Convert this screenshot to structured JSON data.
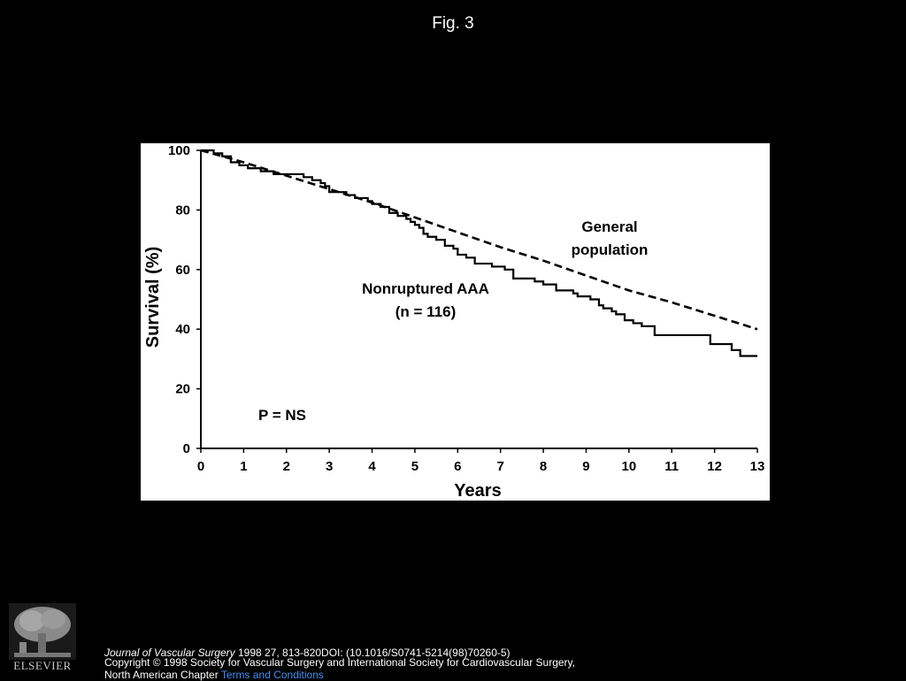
{
  "slide": {
    "title": "Fig. 3"
  },
  "chart_data": {
    "type": "line",
    "title": "",
    "xlabel": "Years",
    "ylabel": "Survival (%)",
    "xlim": [
      0,
      13
    ],
    "ylim": [
      0,
      100
    ],
    "x_ticks": [
      "0",
      "1",
      "2",
      "3",
      "4",
      "5",
      "6",
      "7",
      "8",
      "9",
      "10",
      "11",
      "12",
      "13"
    ],
    "y_ticks": [
      "0",
      "20",
      "40",
      "60",
      "80",
      "100"
    ],
    "grid": false,
    "legend": "none",
    "series": [
      {
        "name": "Nonruptured AAA",
        "style": "step-solid",
        "color": "#000000",
        "x": [
          0,
          0.3,
          0.5,
          0.7,
          0.9,
          1.1,
          1.4,
          1.7,
          2.0,
          2.4,
          2.6,
          2.8,
          2.9,
          3.0,
          3.4,
          3.6,
          3.9,
          4.0,
          4.2,
          4.4,
          4.6,
          4.8,
          4.9,
          5.0,
          5.1,
          5.2,
          5.3,
          5.5,
          5.7,
          5.9,
          6.0,
          6.2,
          6.4,
          6.8,
          7.1,
          7.3,
          7.8,
          8.0,
          8.3,
          8.7,
          8.8,
          9.0,
          9.1,
          9.3,
          9.4,
          9.6,
          9.7,
          9.9,
          10.1,
          10.3,
          10.6,
          11.3,
          11.9,
          12.4,
          12.6,
          12.8,
          13.0
        ],
        "y": [
          100,
          99,
          98,
          96,
          95,
          94,
          93,
          92,
          92,
          91,
          90,
          89,
          88,
          86,
          85,
          84,
          83,
          82,
          81,
          79,
          78,
          77,
          76,
          75,
          74,
          72,
          71,
          70,
          68,
          67,
          65,
          64,
          62,
          61,
          60,
          57,
          56,
          55,
          53,
          52,
          51,
          51,
          50,
          48,
          47,
          46,
          45,
          43,
          42,
          41,
          38,
          38,
          35,
          33,
          31,
          31,
          31
        ]
      },
      {
        "name": "General population",
        "style": "dashed",
        "color": "#000000",
        "x": [
          0,
          1,
          2,
          3,
          4,
          5,
          6,
          7,
          8,
          9,
          10,
          11,
          12,
          13
        ],
        "y": [
          100,
          96,
          91.5,
          87,
          82.5,
          77.5,
          72.5,
          67.5,
          63,
          58,
          53,
          49,
          44.5,
          40
        ]
      }
    ],
    "annotations": [
      {
        "lines": [
          "General",
          "population"
        ]
      },
      {
        "lines": [
          "Nonruptured AAA",
          "(n = 116)"
        ]
      },
      {
        "lines": [
          "P = NS"
        ]
      }
    ]
  },
  "footer": {
    "journal_name": "Journal of Vascular Surgery",
    "citation": " 1998 27, 813-820DOI: (10.1016/S0741-5214(98)70260-5)",
    "copyright": "Copyright © 1998 Society for Vascular Surgery and International Society for Cardiovascular Surgery,",
    "copyright_line2": "North American Chapter ",
    "terms_link": "Terms and Conditions",
    "publisher_logo_text": "ELSEVIER"
  }
}
